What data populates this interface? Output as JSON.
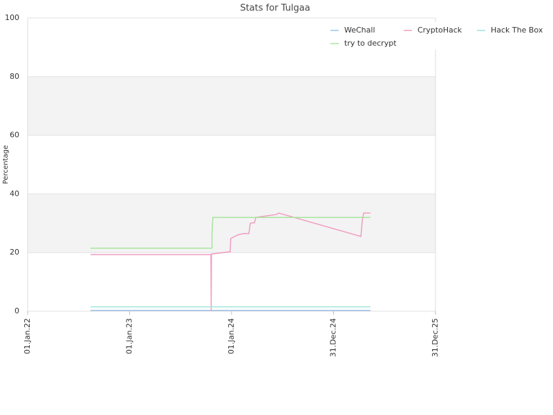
{
  "chart_data": {
    "type": "line",
    "title": "Stats for Tulgaa",
    "y_label": "Percentage",
    "xlim": [
      "2022-01-01",
      "2025-12-31"
    ],
    "xticks": [
      {
        "value": "2022-01-01",
        "label": "01.Jan.22"
      },
      {
        "value": "2023-01-01",
        "label": "01.Jan.23"
      },
      {
        "value": "2024-01-01",
        "label": "01.Jan.24"
      },
      {
        "value": "2024-12-31",
        "label": "31.Dec.24"
      },
      {
        "value": "2025-12-31",
        "label": "31.Dec.25"
      }
    ],
    "ylim": [
      0,
      100
    ],
    "yticks": [
      0,
      20,
      40,
      60,
      80,
      100
    ],
    "grid": true,
    "legend": "upper right",
    "series": [
      {
        "name": "WeChall",
        "color": "#9cc3ea",
        "x": [
          "2022-08-14",
          "2025-05-12"
        ],
        "values": [
          0.3,
          0.3
        ]
      },
      {
        "name": "CryptoHack",
        "color": "#f09cc0",
        "x": [
          "2022-08-14",
          "2023-10-19",
          "2023-10-20",
          "2023-10-21",
          "2023-12-27",
          "2023-12-29",
          "2024-01-23",
          "2024-02-12",
          "2024-03-03",
          "2024-03-08",
          "2024-03-23",
          "2024-03-28",
          "2024-06-10",
          "2024-06-17",
          "2025-04-08",
          "2025-04-13",
          "2025-04-18",
          "2025-05-12"
        ],
        "values": [
          19.3,
          19.3,
          0,
          19.5,
          20.3,
          24.8,
          26,
          26.5,
          26.5,
          30,
          30.2,
          32,
          33,
          33.5,
          25.5,
          31,
          33.5,
          33.5
        ]
      },
      {
        "name": "Hack The Box",
        "color": "#9ee6dc",
        "x": [
          "2022-08-14",
          "2025-05-12"
        ],
        "values": [
          1.5,
          1.5
        ]
      },
      {
        "name": "try to decrypt",
        "color": "#a6e49c",
        "x": [
          "2022-08-14",
          "2023-10-23",
          "2023-10-23",
          "2023-10-26",
          "2025-05-12"
        ],
        "values": [
          21.5,
          21.5,
          26.5,
          32,
          32
        ]
      }
    ]
  }
}
